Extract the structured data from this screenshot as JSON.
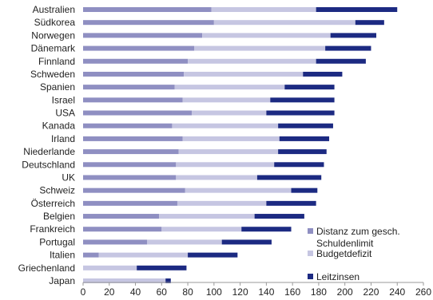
{
  "chart_data": {
    "type": "bar",
    "orientation": "horizontal",
    "stacked": true,
    "categories": [
      "Australien",
      "Südkorea",
      "Norwegen",
      "Dänemark",
      "Finnland",
      "Schweden",
      "Spanien",
      "Israel",
      "USA",
      "Kanada",
      "Irland",
      "Niederlande",
      "Deutschland",
      "UK",
      "Schweiz",
      "Österreich",
      "Belgien",
      "Frankreich",
      "Portugal",
      "Italien",
      "Griechenland",
      "Japan"
    ],
    "series": [
      {
        "name": "Distanz zum gesch. Schuldenlimit",
        "color": "#8f8fc2",
        "values": [
          98,
          100,
          91,
          85,
          80,
          77,
          70,
          76,
          83,
          68,
          76,
          73,
          71,
          71,
          78,
          72,
          58,
          60,
          49,
          12,
          0,
          0
        ]
      },
      {
        "name": "Budgetdefizit",
        "color": "#c6c6e2",
        "values": [
          80,
          108,
          98,
          100,
          98,
          91,
          84,
          67,
          57,
          81,
          74,
          76,
          75,
          62,
          81,
          68,
          73,
          61,
          57,
          68,
          41,
          63
        ]
      },
      {
        "name": "Leitzinsen",
        "color": "#1c2a82",
        "values": [
          62,
          22,
          35,
          35,
          38,
          30,
          38,
          49,
          52,
          42,
          38,
          37,
          38,
          49,
          20,
          38,
          38,
          38,
          38,
          38,
          38,
          4
        ]
      }
    ],
    "xlim": [
      0,
      260
    ],
    "xticks": [
      0,
      20,
      40,
      60,
      80,
      100,
      120,
      140,
      160,
      180,
      200,
      220,
      240,
      260
    ],
    "grid": false,
    "legend": {
      "position": "bottom-right",
      "entries": [
        "Distanz zum gesch.",
        "Schuldenlimit",
        "Budgetdefizit",
        "Leitzinsen"
      ]
    },
    "title": "",
    "xlabel": "",
    "ylabel": ""
  }
}
